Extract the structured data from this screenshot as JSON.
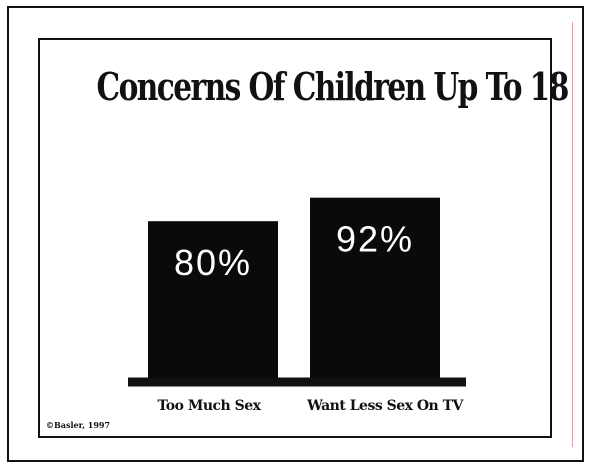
{
  "chart_data": {
    "type": "bar",
    "title": "Concerns Of Children Up To 18",
    "categories": [
      "Too Much Sex",
      "Want Less Sex On TV"
    ],
    "values": [
      80,
      92
    ],
    "data_labels": [
      "80%",
      "92%"
    ],
    "ylim": [
      0,
      100
    ],
    "grid": false,
    "colors": {
      "bar": "#0a0a0a",
      "label": "#ffffff"
    }
  },
  "footer": {
    "copyright": "©Basler, 1997"
  }
}
